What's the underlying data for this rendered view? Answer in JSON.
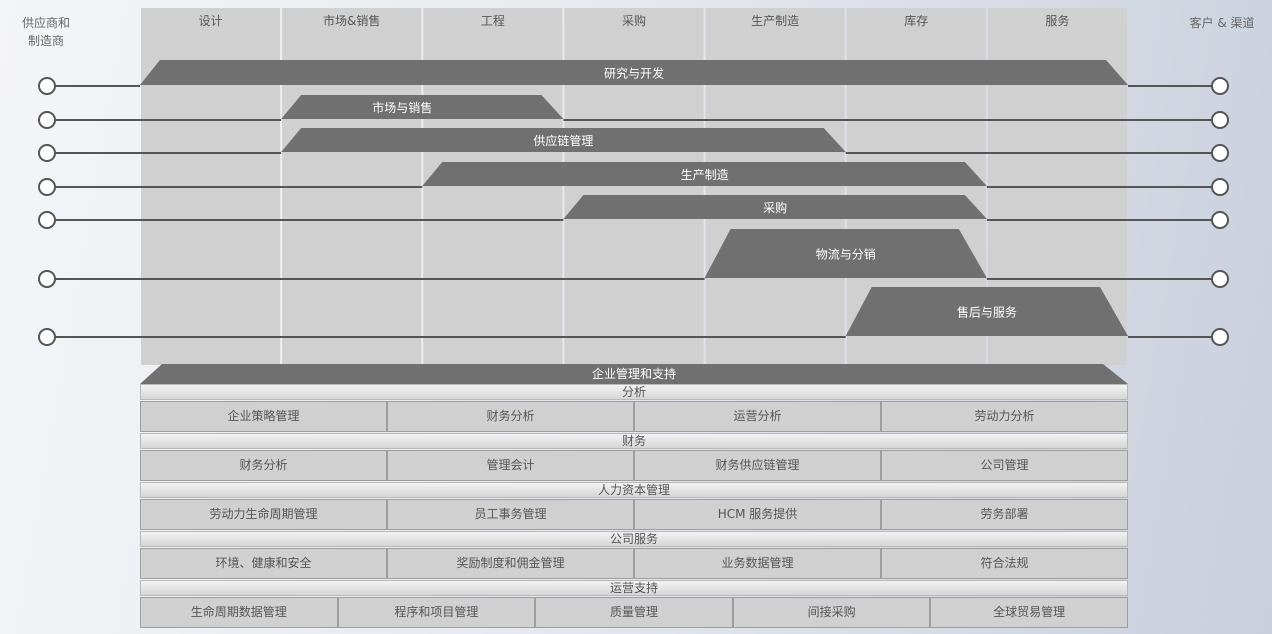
{
  "left_label": "供应商和\n制造商",
  "right_label": "客户 & 渠道",
  "columns": [
    "设计",
    "市场&销售",
    "工程",
    "采购",
    "生产制造",
    "库存",
    "服务"
  ],
  "bands": [
    {
      "label": "研究与开发",
      "start_col": 0,
      "end_col": 7
    },
    {
      "label": "市场与销售",
      "start_col": 1,
      "end_col": 3
    },
    {
      "label": "供应链管理",
      "start_col": 1,
      "end_col": 5
    },
    {
      "label": "生产制造",
      "start_col": 2,
      "end_col": 6
    },
    {
      "label": "采购",
      "start_col": 3,
      "end_col": 6
    },
    {
      "label": "物流与分销",
      "start_col": 4,
      "end_col": 6
    },
    {
      "label": "售后与服务",
      "start_col": 5,
      "end_col": 7
    }
  ],
  "enterprise_band": "企业管理和支持",
  "sections": [
    {
      "title": "分析",
      "items": [
        "企业策略管理",
        "财务分析",
        "运营分析",
        "劳动力分析"
      ]
    },
    {
      "title": "财务",
      "items": [
        "财务分析",
        "管理会计",
        "财务供应链管理",
        "公司管理"
      ]
    },
    {
      "title": "人力资本管理",
      "items": [
        "劳动力生命周期管理",
        "员工事务管理",
        "HCM 服务提供",
        "劳务部署"
      ]
    },
    {
      "title": "公司服务",
      "items": [
        "环境、健康和安全",
        "奖励制度和佣金管理",
        "业务数据管理",
        "符合法规"
      ]
    },
    {
      "title": "运营支持",
      "items": [
        "生命周期数据管理",
        "程序和项目管理",
        "质量管理",
        "间接采购",
        "全球贸易管理"
      ]
    }
  ],
  "colors": {
    "band": "#707070",
    "column": "#d0d0d0",
    "line": "#555555"
  }
}
